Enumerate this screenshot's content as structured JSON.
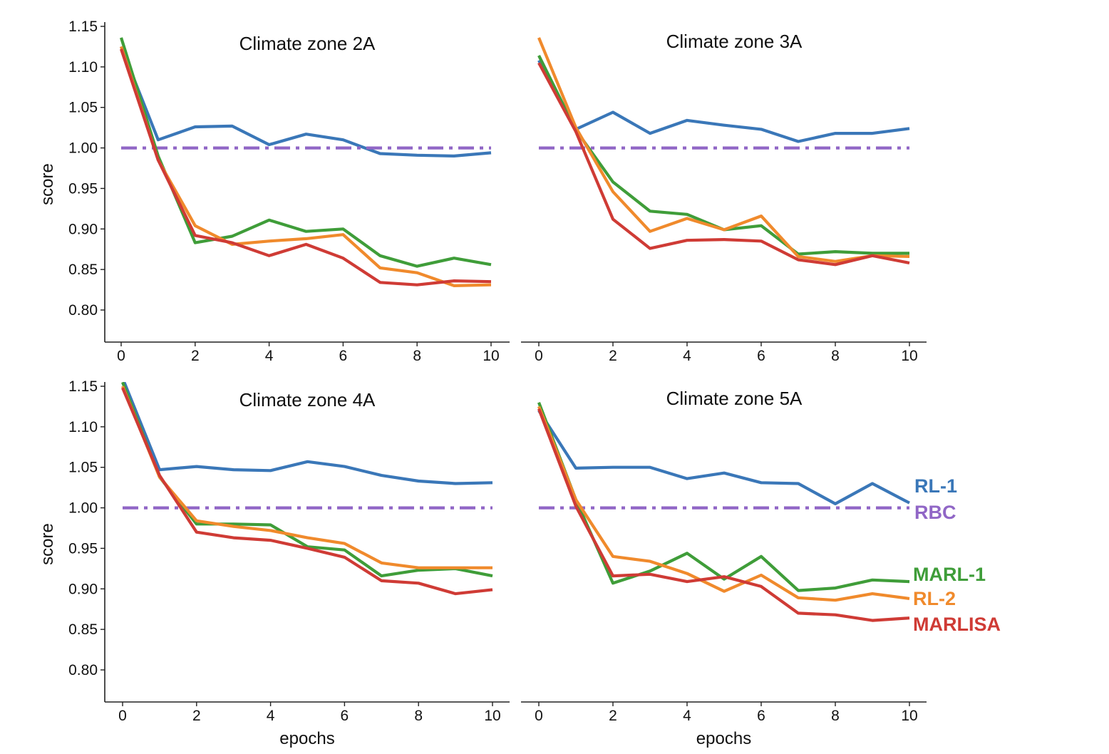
{
  "chart_data": [
    {
      "type": "line",
      "title": "Climate zone 2A",
      "xlabel": "",
      "ylabel": "score",
      "xlim": [
        -0.5,
        10.5
      ],
      "ylim": [
        0.76,
        1.15
      ],
      "xticks": [
        0,
        2,
        4,
        6,
        8,
        10
      ],
      "xtick_labels": [
        "0",
        "2",
        "4",
        "6",
        "8",
        "10"
      ],
      "yticks": [
        0.8,
        0.85,
        0.9,
        0.95,
        1.0,
        1.05,
        1.1,
        1.15
      ],
      "ytick_labels": [
        "0.80",
        "0.85",
        "0.90",
        "0.95",
        "1.00",
        "1.05",
        "1.10",
        "1.15"
      ],
      "x": [
        0,
        1,
        2,
        3,
        4,
        5,
        6,
        7,
        8,
        9,
        10
      ],
      "series": [
        {
          "key": "rl1",
          "values": [
            1.125,
            1.01,
            1.026,
            1.027,
            1.004,
            1.017,
            1.01,
            0.993,
            0.991,
            0.99,
            0.994
          ]
        },
        {
          "key": "rbc",
          "values": [
            1.0,
            1.0,
            1.0,
            1.0,
            1.0,
            1.0,
            1.0,
            1.0,
            1.0,
            1.0,
            1.0
          ]
        },
        {
          "key": "marl1",
          "values": [
            1.136,
            0.99,
            0.883,
            0.891,
            0.911,
            0.897,
            0.9,
            0.867,
            0.854,
            0.864,
            0.856
          ]
        },
        {
          "key": "rl2",
          "values": [
            1.125,
            0.985,
            0.904,
            0.881,
            0.885,
            0.888,
            0.893,
            0.852,
            0.846,
            0.83,
            0.831
          ]
        },
        {
          "key": "marlisa",
          "values": [
            1.122,
            0.985,
            0.892,
            0.883,
            0.867,
            0.881,
            0.864,
            0.834,
            0.831,
            0.836,
            0.835
          ]
        }
      ]
    },
    {
      "type": "line",
      "title": "Climate zone 3A",
      "xlabel": "",
      "ylabel": "",
      "xlim": [
        -0.5,
        10.5
      ],
      "ylim": [
        0.76,
        1.15
      ],
      "xticks": [
        0,
        2,
        4,
        6,
        8,
        10
      ],
      "xtick_labels": [
        "0",
        "2",
        "4",
        "6",
        "8",
        "10"
      ],
      "x": [
        0,
        1,
        2,
        3,
        4,
        5,
        6,
        7,
        8,
        9,
        10
      ],
      "series": [
        {
          "key": "rl1",
          "values": [
            1.108,
            1.023,
            1.044,
            1.018,
            1.034,
            1.028,
            1.023,
            1.008,
            1.018,
            1.018,
            1.024
          ]
        },
        {
          "key": "rbc",
          "values": [
            1.0,
            1.0,
            1.0,
            1.0,
            1.0,
            1.0,
            1.0,
            1.0,
            1.0,
            1.0,
            1.0
          ]
        },
        {
          "key": "marl1",
          "values": [
            1.114,
            1.022,
            0.958,
            0.922,
            0.918,
            0.899,
            0.904,
            0.869,
            0.872,
            0.87,
            0.87
          ]
        },
        {
          "key": "rl2",
          "values": [
            1.136,
            1.025,
            0.946,
            0.897,
            0.913,
            0.899,
            0.916,
            0.866,
            0.86,
            0.867,
            0.866
          ]
        },
        {
          "key": "marlisa",
          "values": [
            1.105,
            1.02,
            0.912,
            0.876,
            0.886,
            0.887,
            0.885,
            0.862,
            0.856,
            0.867,
            0.858
          ]
        }
      ]
    },
    {
      "type": "line",
      "title": "Climate zone 4A",
      "xlabel": "epochs",
      "ylabel": "score",
      "xlim": [
        -0.5,
        10.5
      ],
      "ylim": [
        0.76,
        1.15
      ],
      "xticks": [
        0,
        2,
        4,
        6,
        8,
        10
      ],
      "xtick_labels": [
        "0",
        "2",
        "4",
        "6",
        "8",
        "10"
      ],
      "yticks": [
        0.8,
        0.85,
        0.9,
        0.95,
        1.0,
        1.05,
        1.1,
        1.15
      ],
      "ytick_labels": [
        "0.80",
        "0.85",
        "0.90",
        "0.95",
        "1.00",
        "1.05",
        "1.10",
        "1.15"
      ],
      "x": [
        0,
        1,
        2,
        3,
        4,
        5,
        6,
        7,
        8,
        9,
        10
      ],
      "series": [
        {
          "key": "rl1",
          "values": [
            1.16,
            1.047,
            1.051,
            1.047,
            1.046,
            1.057,
            1.051,
            1.04,
            1.033,
            1.03,
            1.031
          ]
        },
        {
          "key": "rbc",
          "values": [
            1.0,
            1.0,
            1.0,
            1.0,
            1.0,
            1.0,
            1.0,
            1.0,
            1.0,
            1.0,
            1.0
          ]
        },
        {
          "key": "marl1",
          "values": [
            1.155,
            1.038,
            0.98,
            0.98,
            0.979,
            0.952,
            0.948,
            0.916,
            0.923,
            0.925,
            0.916
          ]
        },
        {
          "key": "rl2",
          "values": [
            1.15,
            1.038,
            0.984,
            0.977,
            0.972,
            0.963,
            0.956,
            0.932,
            0.926,
            0.926,
            0.926
          ]
        },
        {
          "key": "marlisa",
          "values": [
            1.148,
            1.04,
            0.97,
            0.963,
            0.96,
            0.95,
            0.939,
            0.91,
            0.907,
            0.894,
            0.899
          ]
        }
      ]
    },
    {
      "type": "line",
      "title": "Climate zone 5A",
      "xlabel": "epochs",
      "ylabel": "",
      "xlim": [
        -0.5,
        10.5
      ],
      "ylim": [
        0.76,
        1.15
      ],
      "xticks": [
        0,
        2,
        4,
        6,
        8,
        10
      ],
      "xtick_labels": [
        "0",
        "2",
        "4",
        "6",
        "8",
        "10"
      ],
      "x": [
        0,
        1,
        2,
        3,
        4,
        5,
        6,
        7,
        8,
        9,
        10
      ],
      "series": [
        {
          "key": "rl1",
          "values": [
            1.12,
            1.049,
            1.05,
            1.05,
            1.036,
            1.043,
            1.031,
            1.03,
            1.005,
            1.03,
            1.006
          ]
        },
        {
          "key": "rbc",
          "values": [
            1.0,
            1.0,
            1.0,
            1.0,
            1.0,
            1.0,
            1.0,
            1.0,
            1.0,
            1.0,
            1.0
          ]
        },
        {
          "key": "marl1",
          "values": [
            1.13,
            1.01,
            0.907,
            0.922,
            0.944,
            0.912,
            0.94,
            0.898,
            0.901,
            0.911,
            0.909
          ]
        },
        {
          "key": "rl2",
          "values": [
            1.125,
            1.01,
            0.94,
            0.934,
            0.919,
            0.897,
            0.917,
            0.889,
            0.886,
            0.894,
            0.888
          ]
        },
        {
          "key": "marlisa",
          "values": [
            1.122,
            1.002,
            0.916,
            0.918,
            0.909,
            0.915,
            0.903,
            0.87,
            0.868,
            0.861,
            0.864
          ]
        }
      ]
    }
  ],
  "legend": {
    "placement": "right of bottom-right panel",
    "entries": [
      {
        "key": "rl1",
        "label": "RL-1",
        "color": "#3a77b8",
        "style": "solid"
      },
      {
        "key": "rbc",
        "label": "RBC",
        "color": "#9066c6",
        "style": "dash-dot"
      },
      {
        "key": "marl1",
        "label": "MARL-1",
        "color": "#3f9d39",
        "style": "solid"
      },
      {
        "key": "rl2",
        "label": "RL-2",
        "color": "#f08a2c",
        "style": "solid"
      },
      {
        "key": "marlisa",
        "label": "MARLISA",
        "color": "#cf3b35",
        "style": "solid"
      }
    ]
  }
}
